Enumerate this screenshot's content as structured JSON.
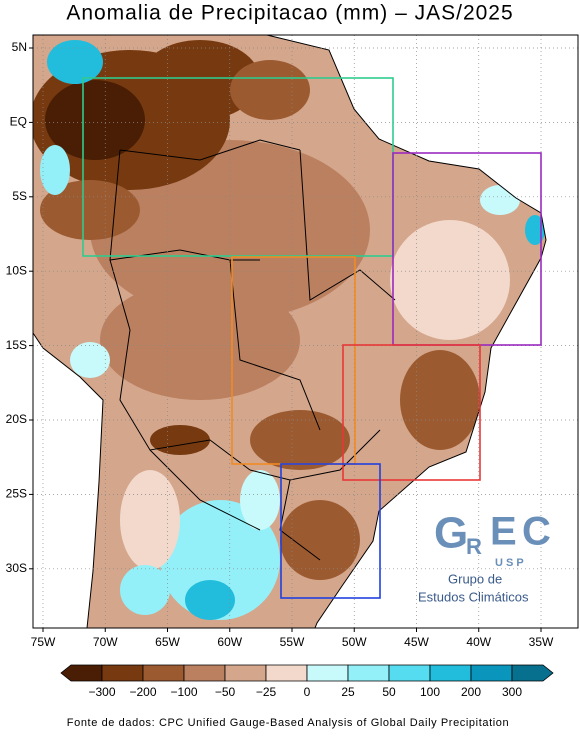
{
  "title": "Anomalia de Precipitacao (mm) – JAS/2025",
  "map": {
    "lat_labels": [
      "5N",
      "EQ",
      "5S",
      "10S",
      "15S",
      "20S",
      "25S",
      "30S"
    ],
    "lon_labels": [
      "75W",
      "70W",
      "65W",
      "60W",
      "55W",
      "50W",
      "45W",
      "40W",
      "35W"
    ]
  },
  "colorbar": {
    "colors": [
      "#4a1e04",
      "#773a10",
      "#9c5a30",
      "#bb8060",
      "#d4a68c",
      "#f2d9cc",
      "#c8fafc",
      "#94f0f8",
      "#55dcf0",
      "#22bcdc",
      "#0a96bc",
      "#06708e"
    ],
    "labels": [
      {
        "value": -300,
        "label": "−300"
      },
      {
        "value": -200,
        "label": "−200"
      },
      {
        "value": -100,
        "label": "−100"
      },
      {
        "value": -50,
        "label": "−50"
      },
      {
        "value": -25,
        "label": "−25"
      },
      0,
      25,
      50,
      100,
      200,
      300
    ]
  },
  "logo": {
    "letters": [
      "G",
      "R",
      "E",
      "C"
    ],
    "university": "U S P",
    "line1": "Grupo de",
    "line2": "Estudos Climáticos"
  },
  "source": "Fonte de dados: CPC Unified Gauge-Based Analysis of Global Daily Precipitation"
}
